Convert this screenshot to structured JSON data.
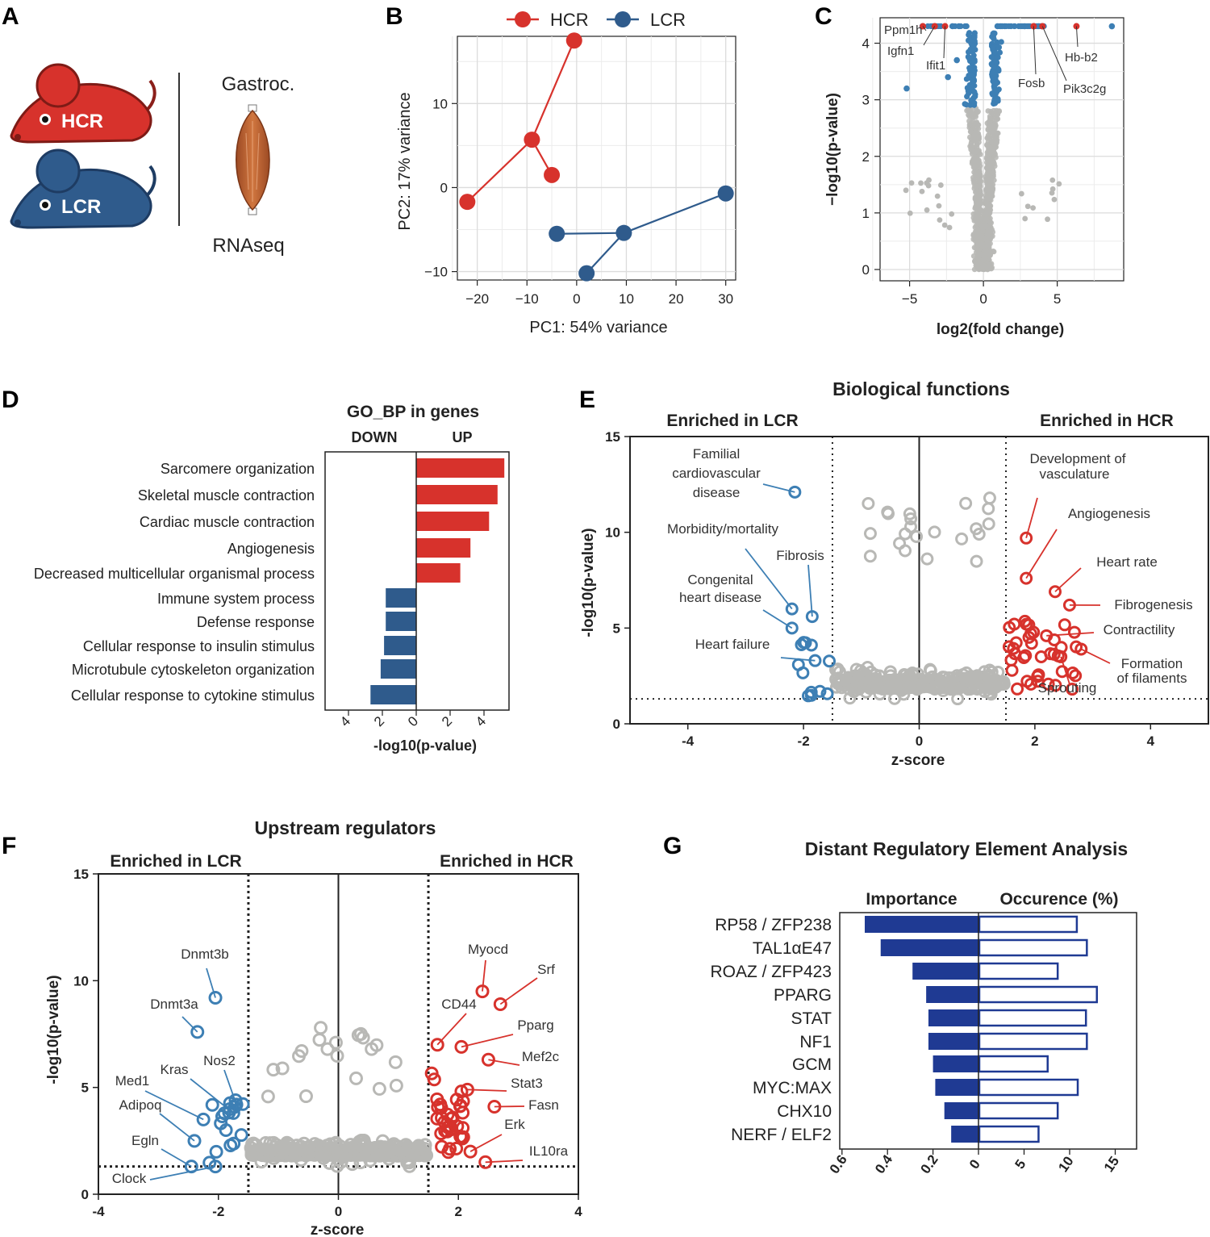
{
  "colors": {
    "hcr": "#d7322c",
    "lcr": "#2f5b8c",
    "lcr_light": "#3d7fb4",
    "grey": "#b8b8b5",
    "navy": "#1f3a93"
  },
  "panel_labels": {
    "a": "A",
    "b": "B",
    "c": "C",
    "d": "D",
    "e": "E",
    "f": "F",
    "g": "G"
  },
  "panel_a": {
    "hcr_label": "HCR",
    "lcr_label": "LCR",
    "tissue_label": "Gastroc.",
    "method_label": "RNAseq",
    "icons": [
      "rat-icon",
      "muscle-icon"
    ]
  },
  "chart_data": [
    {
      "id": "B",
      "type": "scatter",
      "xlabel": "PC1: 54% variance",
      "ylabel": "PC2: 17% variance",
      "xlim": [
        -24,
        32
      ],
      "ylim": [
        -11,
        18
      ],
      "xticks": [
        -20,
        -10,
        0,
        10,
        20,
        30
      ],
      "yticks": [
        -10,
        0,
        10
      ],
      "grid": true,
      "legend": "top",
      "series": [
        {
          "name": "HCR",
          "points": [
            [
              -22,
              -1.7
            ],
            [
              -9,
              5.7
            ],
            [
              -5,
              1.5
            ],
            [
              -0.5,
              17.5
            ]
          ],
          "edges": [
            [
              0,
              1
            ],
            [
              1,
              2
            ],
            [
              1,
              3
            ]
          ]
        },
        {
          "name": "LCR",
          "points": [
            [
              -4,
              -5.5
            ],
            [
              2,
              -10.2
            ],
            [
              9.5,
              -5.4
            ],
            [
              30,
              -0.7
            ]
          ],
          "edges": [
            [
              0,
              2
            ],
            [
              1,
              2
            ],
            [
              2,
              3
            ]
          ]
        }
      ]
    },
    {
      "id": "C",
      "type": "scatter",
      "xlabel": "log2(fold change)",
      "ylabel": "−log10(p-value)",
      "xlim": [
        -7,
        9.5
      ],
      "ylim": [
        -0.2,
        4.45
      ],
      "xticks": [
        -5,
        0,
        5
      ],
      "yticks": [
        0,
        1,
        2,
        3,
        4
      ],
      "grid": true,
      "labeled_genes": [
        {
          "name": "Ppm1h",
          "x": -4.1,
          "y": 4.3
        },
        {
          "name": "Igfn1",
          "x": -3.3,
          "y": 4.3
        },
        {
          "name": "Ifit1",
          "x": -2.6,
          "y": 4.3
        },
        {
          "name": "Fosb",
          "x": 3.4,
          "y": 4.3
        },
        {
          "name": "Pik3c2g",
          "x": 4.0,
          "y": 4.3
        },
        {
          "name": "Hb-b2",
          "x": 6.3,
          "y": 4.3
        }
      ],
      "significant_extremes": [
        [
          -5.2,
          3.2
        ],
        [
          -2.4,
          3.4
        ],
        [
          -1.8,
          3.7
        ],
        [
          8.7,
          4.3
        ]
      ]
    },
    {
      "id": "D",
      "type": "bar",
      "title": "GO_BP in genes",
      "header_down": "DOWN",
      "header_up": "UP",
      "xlabel": "-log10(p-value)",
      "xticks": [
        4,
        2,
        0,
        2,
        4
      ],
      "categories": [
        "Sarcomere organization",
        "Skeletal muscle contraction",
        "Cardiac muscle contraction",
        "Angiogenesis",
        "Decreased multicellular organismal process",
        "Immune system process",
        "Defense response",
        "Cellular response to insulin stimulus",
        "Microtubule cytoskeleton organization",
        "Cellular response to cytokine stimulus"
      ],
      "series": [
        {
          "name": "UP",
          "values": [
            5.2,
            4.8,
            4.3,
            3.2,
            2.6,
            0,
            0,
            0,
            0,
            0
          ]
        },
        {
          "name": "DOWN",
          "values": [
            0,
            0,
            0,
            0,
            0,
            1.8,
            1.8,
            1.9,
            2.1,
            2.7
          ]
        }
      ]
    },
    {
      "id": "E",
      "type": "scatter",
      "title": "Biological functions",
      "left_header": "Enriched in LCR",
      "right_header": "Enriched in HCR",
      "xlabel": "z-score",
      "ylabel": "-log10(p-value)",
      "xlim": [
        -5,
        5
      ],
      "ylim": [
        0,
        15
      ],
      "xticks": [
        -4,
        -2,
        0,
        2,
        4
      ],
      "yticks": [
        0,
        5,
        10,
        15
      ],
      "z_threshold": 1.5,
      "p_threshold": 1.3,
      "labeled_points": [
        {
          "name": "Familial cardiovascular disease",
          "x": -2.15,
          "y": 12.1,
          "group": "LCR"
        },
        {
          "name": "Morbidity/mortality",
          "x": -2.2,
          "y": 6.0,
          "group": "LCR"
        },
        {
          "name": "Fibrosis",
          "x": -1.85,
          "y": 5.6,
          "group": "LCR"
        },
        {
          "name": "Congenital heart disease",
          "x": -2.2,
          "y": 5.0,
          "group": "LCR"
        },
        {
          "name": "Heart failure",
          "x": -1.8,
          "y": 3.3,
          "group": "LCR"
        },
        {
          "name": "Development of vasculature",
          "x": 1.85,
          "y": 9.7,
          "group": "HCR"
        },
        {
          "name": "Angiogenesis",
          "x": 1.85,
          "y": 7.6,
          "group": "HCR"
        },
        {
          "name": "Heart rate",
          "x": 2.35,
          "y": 6.9,
          "group": "HCR"
        },
        {
          "name": "Fibrogenesis",
          "x": 2.6,
          "y": 6.2,
          "group": "HCR"
        },
        {
          "name": "Contractility",
          "x": 2.2,
          "y": 4.6,
          "group": "HCR"
        },
        {
          "name": "Formation of filaments",
          "x": 2.8,
          "y": 3.9,
          "group": "HCR"
        },
        {
          "name": "Sprouting",
          "x": 2.45,
          "y": 3.5,
          "group": "HCR"
        }
      ]
    },
    {
      "id": "F",
      "type": "scatter",
      "title": "Upstream regulators",
      "left_header": "Enriched in LCR",
      "right_header": "Enriched in HCR",
      "xlabel": "z-score",
      "ylabel": "-log10(p-value)",
      "xlim": [
        -4,
        4
      ],
      "ylim": [
        0,
        15
      ],
      "xticks": [
        -4,
        -2,
        0,
        2,
        4
      ],
      "yticks": [
        0,
        5,
        10,
        15
      ],
      "z_threshold": 1.5,
      "p_threshold": 1.3,
      "labeled_points": [
        {
          "name": "Dnmt3b",
          "x": -2.05,
          "y": 9.2,
          "group": "LCR"
        },
        {
          "name": "Dnmt3a",
          "x": -2.35,
          "y": 7.6,
          "group": "LCR"
        },
        {
          "name": "Nos2",
          "x": -1.7,
          "y": 4.2,
          "group": "LCR"
        },
        {
          "name": "Kras",
          "x": -1.75,
          "y": 3.8,
          "group": "LCR"
        },
        {
          "name": "Med1",
          "x": -2.25,
          "y": 3.5,
          "group": "LCR"
        },
        {
          "name": "Adipoq",
          "x": -2.4,
          "y": 2.5,
          "group": "LCR"
        },
        {
          "name": "Egln",
          "x": -2.45,
          "y": 1.3,
          "group": "LCR"
        },
        {
          "name": "Clock",
          "x": -2.05,
          "y": 1.3,
          "group": "LCR"
        },
        {
          "name": "Myocd",
          "x": 2.4,
          "y": 9.5,
          "group": "HCR"
        },
        {
          "name": "Srf",
          "x": 2.7,
          "y": 8.9,
          "group": "HCR"
        },
        {
          "name": "CD44",
          "x": 1.65,
          "y": 7.0,
          "group": "HCR"
        },
        {
          "name": "Pparg",
          "x": 2.05,
          "y": 6.9,
          "group": "HCR"
        },
        {
          "name": "Mef2c",
          "x": 2.5,
          "y": 6.3,
          "group": "HCR"
        },
        {
          "name": "Stat3",
          "x": 2.15,
          "y": 4.9,
          "group": "HCR"
        },
        {
          "name": "Fasn",
          "x": 2.6,
          "y": 4.1,
          "group": "HCR"
        },
        {
          "name": "Erk",
          "x": 2.2,
          "y": 2.0,
          "group": "HCR"
        },
        {
          "name": "IL10ra",
          "x": 2.45,
          "y": 1.5,
          "group": "HCR"
        }
      ]
    },
    {
      "id": "G",
      "type": "bar",
      "title": "Distant Regulatory Element Analysis",
      "header_left": "Importance",
      "header_right": "Occurence (%)",
      "xticks_left": [
        "0.6",
        "0.4",
        "0.2",
        "0"
      ],
      "xticks_right": [
        "5",
        "10",
        "15"
      ],
      "categories": [
        "RP58 / ZFP238",
        "TAL1αE47",
        "ROAZ / ZFP423",
        "PPARG",
        "STAT",
        "NF1",
        "GCM",
        "MYC:MAX",
        "CHX10",
        "NERF / ELF2"
      ],
      "series": [
        {
          "name": "Importance",
          "values": [
            0.5,
            0.43,
            0.29,
            0.23,
            0.22,
            0.22,
            0.2,
            0.19,
            0.15,
            0.12
          ]
        },
        {
          "name": "Occurence (%)",
          "values": [
            10.7,
            11.8,
            8.6,
            12.9,
            11.7,
            11.8,
            7.5,
            10.8,
            8.6,
            6.5
          ]
        }
      ]
    }
  ]
}
